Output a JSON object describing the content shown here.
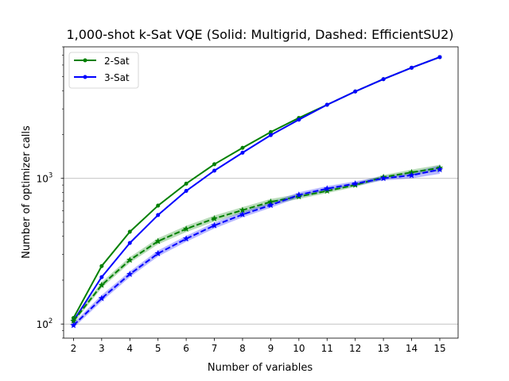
{
  "chart_data": {
    "type": "line",
    "title": "1,000-shot k-Sat VQE (Solid: Multigrid, Dashed: EfficientSU2)",
    "xlabel": "Number of variables",
    "ylabel": "Number of optimizer calls",
    "yscale": "log",
    "xlim": [
      1.65,
      15.65
    ],
    "ylim": [
      80,
      8000
    ],
    "x": [
      2,
      3,
      4,
      5,
      6,
      7,
      8,
      9,
      10,
      11,
      12,
      13,
      14,
      15
    ],
    "x_ticks": [
      "2",
      "3",
      "4",
      "5",
      "6",
      "7",
      "8",
      "9",
      "10",
      "11",
      "12",
      "13",
      "14",
      "15"
    ],
    "y_ticks": [
      {
        "value": 100,
        "base": "10",
        "exp": "2"
      },
      {
        "value": 1000,
        "base": "10",
        "exp": "3"
      }
    ],
    "grid": "horizontal-major",
    "legend_position": "top-left",
    "legend": [
      {
        "label": "2-Sat",
        "color": "#008000"
      },
      {
        "label": "3-Sat",
        "color": "#0000ff"
      }
    ],
    "series": [
      {
        "name": "2-Sat Multigrid",
        "color": "#008000",
        "style": "solid",
        "marker": "dot",
        "values": [
          110,
          250,
          430,
          650,
          920,
          1250,
          1620,
          2080,
          2600,
          3200,
          3950,
          4800,
          5750,
          6800
        ]
      },
      {
        "name": "3-Sat Multigrid",
        "color": "#0000ff",
        "style": "solid",
        "marker": "dot",
        "values": [
          105,
          210,
          360,
          560,
          820,
          1130,
          1500,
          1980,
          2530,
          3200,
          3950,
          4800,
          5750,
          6800
        ]
      },
      {
        "name": "2-Sat EfficientSU2",
        "color": "#008000",
        "style": "dashed",
        "marker": "star",
        "values": [
          105,
          185,
          275,
          370,
          450,
          530,
          605,
          690,
          750,
          820,
          900,
          1020,
          1100,
          1180
        ],
        "band_low": [
          101,
          177,
          263,
          353,
          428,
          505,
          578,
          660,
          722,
          792,
          872,
          985,
          1055,
          1125
        ],
        "band_high": [
          109,
          194,
          288,
          388,
          472,
          556,
          634,
          722,
          780,
          850,
          930,
          1055,
          1148,
          1240
        ]
      },
      {
        "name": "3-Sat EfficientSU2",
        "color": "#0000ff",
        "style": "dashed",
        "marker": "star",
        "values": [
          98,
          150,
          220,
          305,
          385,
          475,
          565,
          655,
          770,
          850,
          920,
          1000,
          1050,
          1150
        ],
        "band_low": [
          94,
          143,
          210,
          291,
          367,
          453,
          540,
          628,
          740,
          818,
          888,
          968,
          1000,
          1075
        ],
        "band_high": [
          102,
          158,
          230,
          320,
          403,
          498,
          591,
          683,
          802,
          884,
          955,
          1034,
          1100,
          1225
        ]
      }
    ]
  }
}
